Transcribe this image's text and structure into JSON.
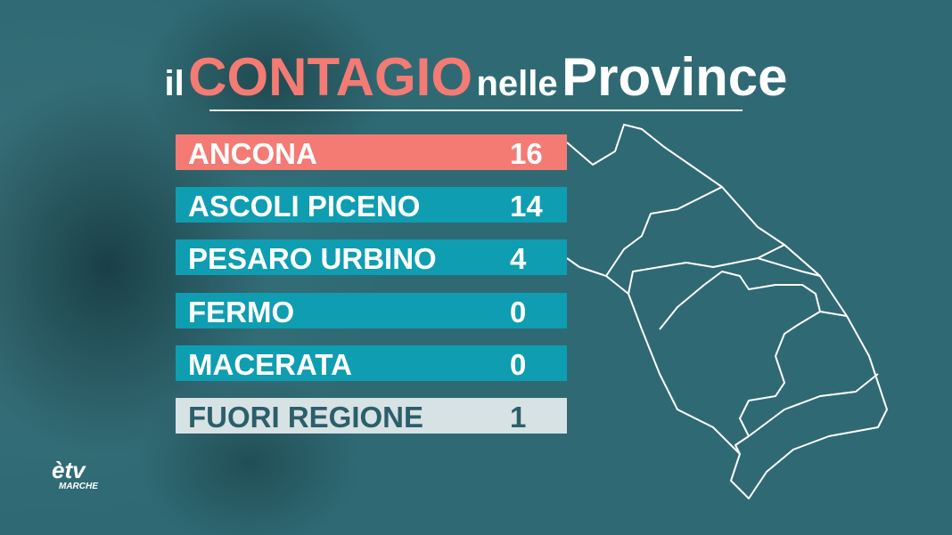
{
  "title": {
    "parts": [
      "il",
      "CONTAGIO",
      "nelle",
      "Province"
    ]
  },
  "table": {
    "rows": [
      [
        "ANCONA",
        16
      ],
      [
        "ASCOLI PICENO",
        14
      ],
      [
        "PESARO URBINO",
        4
      ],
      [
        "FERMO",
        0
      ],
      [
        "MACERATA",
        0
      ],
      [
        "FUORI REGIONE",
        1
      ]
    ]
  },
  "logo": {
    "brand": "ètv",
    "region": "MARCHE"
  }
}
